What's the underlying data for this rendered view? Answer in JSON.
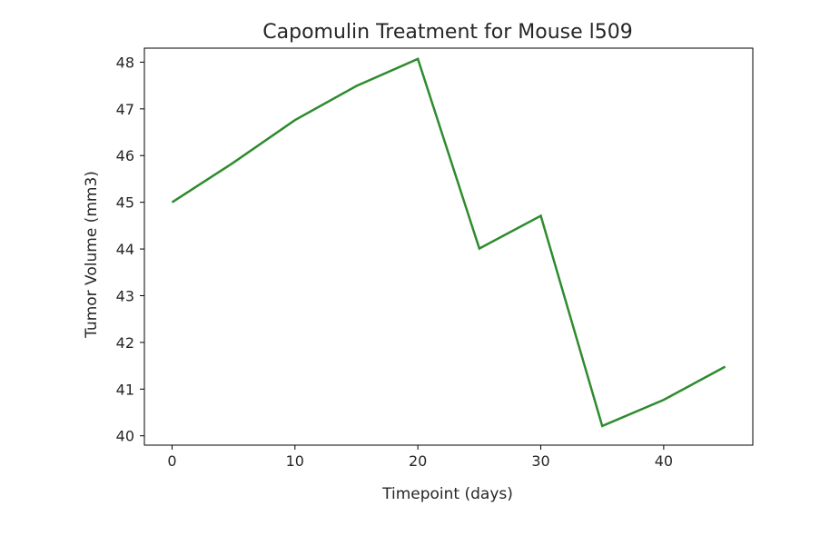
{
  "chart_data": {
    "type": "line",
    "title": "Capomulin Treatment for Mouse l509",
    "xlabel": "Timepoint (days)",
    "ylabel": "Tumor Volume (mm3)",
    "xlim": [
      -2.25,
      47.25
    ],
    "ylim": [
      39.8,
      48.3
    ],
    "xticks": [
      0,
      10,
      20,
      30,
      40
    ],
    "yticks": [
      40,
      41,
      42,
      43,
      44,
      45,
      46,
      47,
      48
    ],
    "grid": false,
    "series": [
      {
        "color": "#2e8b2e",
        "x": [
          0,
          5,
          10,
          15,
          20,
          25,
          30,
          35,
          40,
          45
        ],
        "y": [
          45.0,
          45.85,
          46.76,
          47.49,
          48.07,
          44.01,
          44.71,
          40.21,
          40.77,
          41.48
        ]
      }
    ]
  }
}
